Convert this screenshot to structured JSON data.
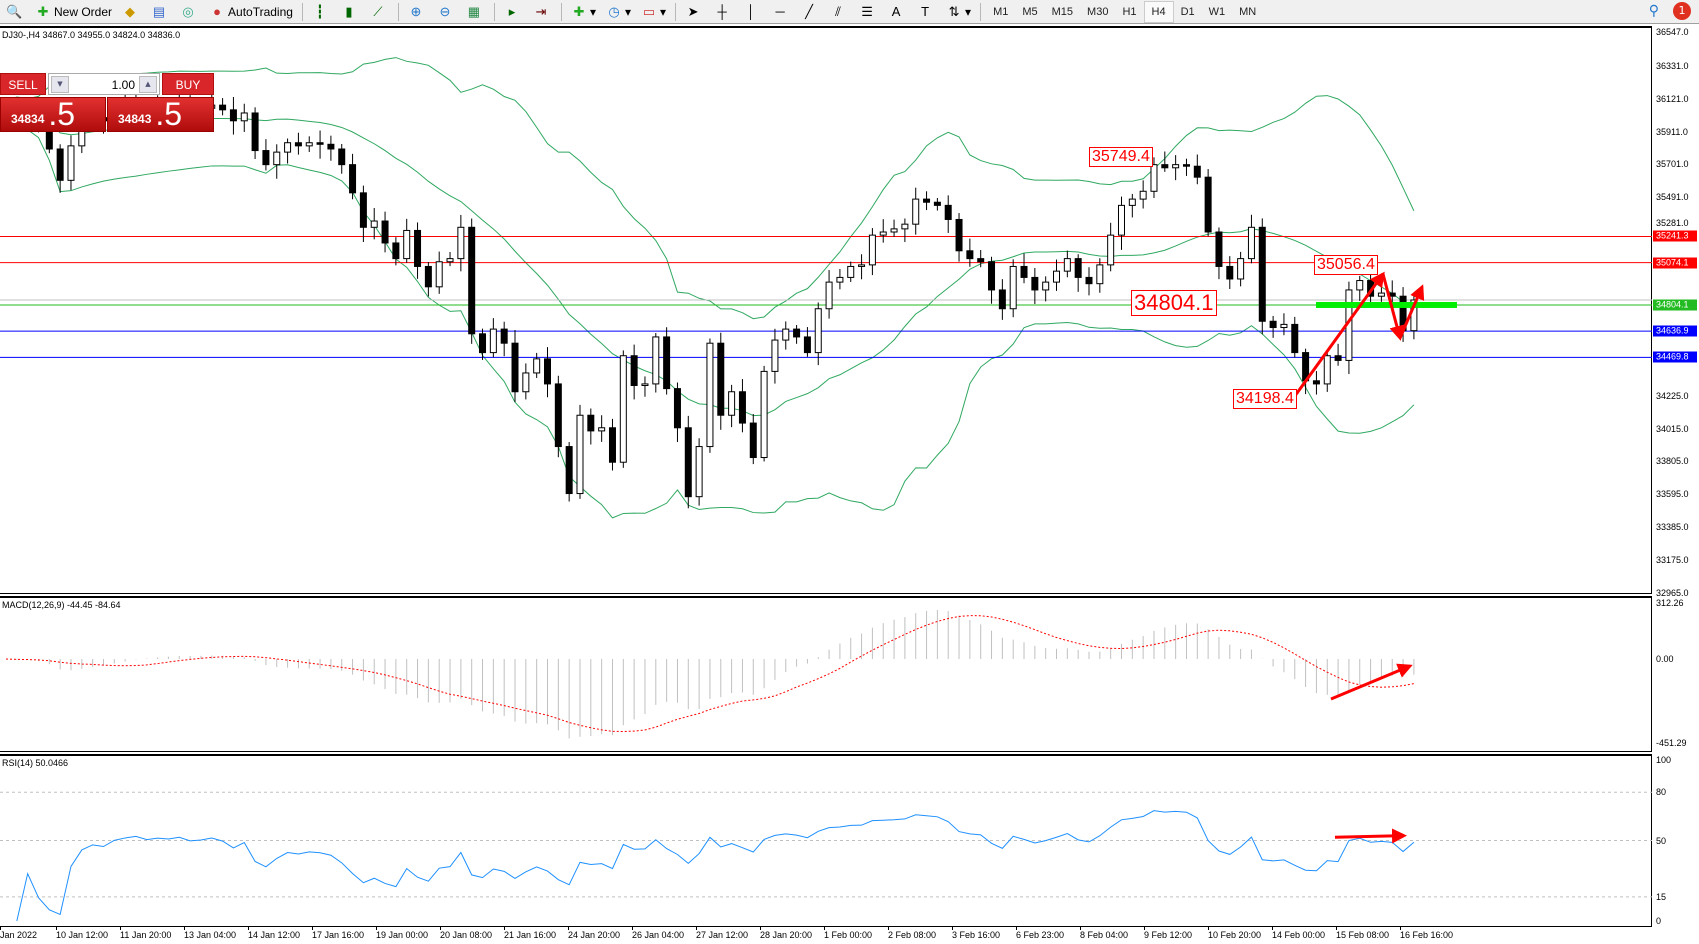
{
  "toolbar": {
    "new_order": "New Order",
    "autotrading": "AutoTrading",
    "icons": [
      "search-icon",
      "new-order-icon",
      "market-watch-icon",
      "navigator-icon",
      "signals-icon",
      "autotrading-icon",
      "bar-chart-icon",
      "candlestick-icon",
      "line-chart-icon",
      "zoom-in-icon",
      "zoom-out-icon",
      "tile-windows-icon",
      "auto-scroll-icon",
      "chart-shift-icon",
      "indicators-icon",
      "periods-icon",
      "templates-icon",
      "cursor-icon",
      "crosshair-icon",
      "vertical-line-icon",
      "horizontal-line-icon",
      "trendline-icon",
      "equidistant-channel-icon",
      "fibonacci-icon",
      "text-icon",
      "text-label-icon",
      "arrows-icon"
    ],
    "timeframes": [
      "M1",
      "M5",
      "M15",
      "M30",
      "H1",
      "H4",
      "D1",
      "W1",
      "MN"
    ],
    "active_timeframe": "H4",
    "notifications": "1"
  },
  "chart": {
    "header": "DJ30-,H4  34867.0 34955.0 34824.0 34836.0",
    "trade_panel": {
      "sell": "SELL",
      "buy": "BUY",
      "lots": "1.00",
      "bid_small": "34834",
      "bid_big": ".5",
      "ask_small": "34843",
      "ask_big": ".5"
    },
    "price_axis": [
      "36547.0",
      "36331.0",
      "36121.0",
      "35911.0",
      "35701.0",
      "35491.0",
      "35281.0",
      "34225.0",
      "34015.0",
      "33805.0",
      "33595.0",
      "33385.0",
      "33175.0",
      "32965.0"
    ],
    "levels": [
      {
        "price": 35241.3,
        "label": "35241.3",
        "color": "#ff0000"
      },
      {
        "price": 35074.1,
        "label": "35074.1",
        "color": "#ff0000"
      },
      {
        "price": 34804.1,
        "label": "34804.1",
        "color": "#22bb22"
      },
      {
        "price": 34636.9,
        "label": "34636.9",
        "color": "#0000ff"
      },
      {
        "price": 34469.8,
        "label": "34469.8",
        "color": "#0000ff"
      }
    ],
    "bid_line": 34836.0,
    "annotations": [
      "35749.4",
      "35056.4",
      "34804.1",
      "34198.4"
    ],
    "colors": {
      "bands": "#2fa860",
      "up": "#ffffff",
      "down": "#000000",
      "arrow": "#ff0000",
      "zone": "#00ee00"
    }
  },
  "macd": {
    "title": "MACD(12,26,9) -44.45 -84.64",
    "axis": [
      "312.26",
      "0.00",
      "-451.29"
    ]
  },
  "rsi": {
    "title": "RSI(14) 50.0466",
    "axis": [
      "100",
      "80",
      "50",
      "15",
      "0"
    ]
  },
  "time_axis": [
    "Jan 2022",
    "10 Jan 12:00",
    "11 Jan 20:00",
    "13 Jan 04:00",
    "14 Jan 12:00",
    "17 Jan 16:00",
    "19 Jan 00:00",
    "20 Jan 08:00",
    "21 Jan 16:00",
    "24 Jan 20:00",
    "26 Jan 04:00",
    "27 Jan 12:00",
    "28 Jan 20:00",
    "1 Feb 00:00",
    "2 Feb 08:00",
    "3 Feb 16:00",
    "6 Feb 23:00",
    "8 Feb 04:00",
    "9 Feb 12:00",
    "10 Feb 20:00",
    "14 Feb 00:00",
    "15 Feb 08:00",
    "16 Feb 16:00"
  ],
  "chart_data": {
    "type": "candlestick",
    "symbol": "DJ30-",
    "timeframe": "H4",
    "ylim": [
      32965,
      36547
    ],
    "close": [
      36048,
      36000,
      36020,
      35950,
      35800,
      35600,
      35820,
      35950,
      36000,
      35980,
      36050,
      36080,
      36100,
      36060,
      36080,
      36070,
      36090,
      36050,
      36060,
      36080,
      36050,
      35980,
      36030,
      35790,
      35700,
      35780,
      35840,
      35820,
      35840,
      35830,
      35800,
      35700,
      35520,
      35300,
      35340,
      35200,
      35100,
      35280,
      35050,
      34920,
      35080,
      35100,
      35300,
      34620,
      34500,
      34650,
      34560,
      34250,
      34370,
      34460,
      34300,
      33900,
      33600,
      34100,
      34000,
      34020,
      33800,
      34480,
      34290,
      34300,
      34600,
      34270,
      34020,
      33580,
      33900,
      34560,
      34100,
      34250,
      34050,
      33830,
      34380,
      34580,
      34650,
      34600,
      34500,
      34780,
      34950,
      34980,
      35050,
      35060,
      35250,
      35270,
      35290,
      35320,
      35480,
      35460,
      35440,
      35350,
      35150,
      35100,
      35080,
      34900,
      34780,
      35050,
      34980,
      34900,
      34950,
      35020,
      35100,
      34980,
      34940,
      35060,
      35250,
      35440,
      35480,
      35530,
      35700,
      35680,
      35700,
      35690,
      35620,
      35270,
      35050,
      34970,
      35100,
      35300,
      34700,
      34660,
      34680,
      34500,
      34320,
      34300,
      34480,
      34450,
      34900,
      34960,
      34860,
      34880,
      34860,
      34640,
      34836
    ]
  }
}
